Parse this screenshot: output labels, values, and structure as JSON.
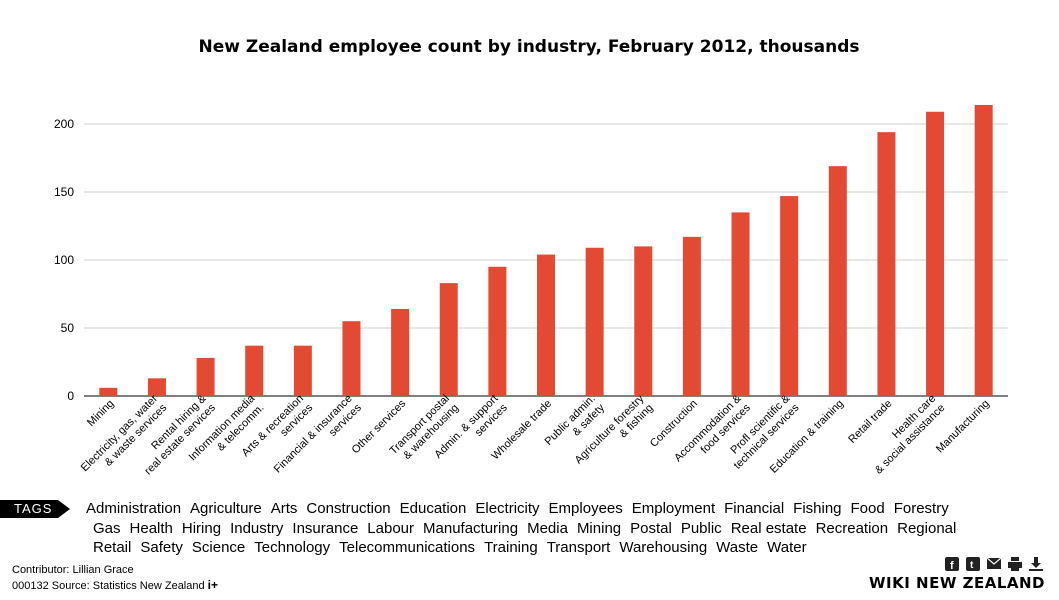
{
  "chart_data": {
    "type": "bar",
    "title": "New Zealand employee count by industry, February 2012, thousands",
    "xlabel": "",
    "ylabel": "",
    "ylim": [
      0,
      220
    ],
    "yticks": [
      0,
      50,
      100,
      150,
      200
    ],
    "grid": true,
    "bar_color": "#e24a33",
    "categories": [
      [
        "Mining"
      ],
      [
        "Electricity, gas, water",
        "& waste services"
      ],
      [
        "Rental hiring &",
        "real estate services"
      ],
      [
        "Information media",
        "& telecomm."
      ],
      [
        "Arts & recreation",
        "services"
      ],
      [
        "Financial & insurance",
        "services"
      ],
      [
        "Other services"
      ],
      [
        "Transport postal",
        "& warehousing"
      ],
      [
        "Admin. & support",
        "services"
      ],
      [
        "Wholesale trade"
      ],
      [
        "Public admin.",
        "& safety"
      ],
      [
        "Agriculture forestry",
        "& fishing"
      ],
      [
        "Construction"
      ],
      [
        "Accommodation &",
        "food services"
      ],
      [
        "Profl scientific &",
        "technical services"
      ],
      [
        "Education & training"
      ],
      [
        "Retail trade"
      ],
      [
        "Health care",
        "& social assistance"
      ],
      [
        "Manufacturing"
      ]
    ],
    "values": [
      6,
      13,
      28,
      37,
      37,
      55,
      64,
      83,
      95,
      104,
      109,
      110,
      117,
      135,
      147,
      169,
      194,
      209,
      214
    ]
  },
  "tags_label": "TAGS",
  "tags_rows": [
    [
      "Administration",
      "Agriculture",
      "Arts",
      "Construction",
      "Education",
      "Electricity",
      "Employees",
      "Employment",
      "Financial",
      "Fishing",
      "Food",
      "Forestry"
    ],
    [
      "Gas",
      "Health",
      "Hiring",
      "Industry",
      "Insurance",
      "Labour",
      "Manufacturing",
      "Media",
      "Mining",
      "Postal",
      "Public",
      "Real estate",
      "Recreation",
      "Regional"
    ],
    [
      "Retail",
      "Safety",
      "Science",
      "Technology",
      "Telecommunications",
      "Training",
      "Transport",
      "Warehousing",
      "Waste",
      "Water"
    ]
  ],
  "footer": {
    "contributor": "Contributor: Lillian Grace",
    "source": "000132 Source: Statistics New Zealand",
    "plus": "i+",
    "brand": "WIKI NEW ZEALAND"
  },
  "icons": [
    "facebook-icon",
    "twitter-icon",
    "email-icon",
    "print-icon",
    "download-icon"
  ]
}
